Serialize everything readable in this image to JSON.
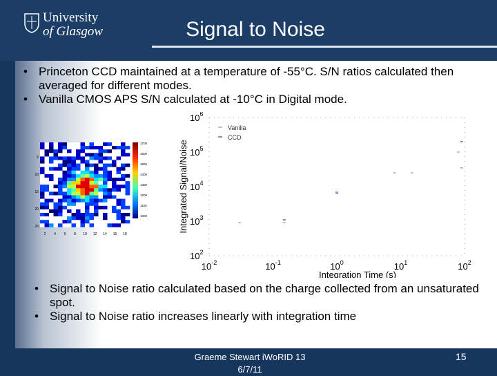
{
  "header": {
    "university_line1": "University",
    "university_line2": "of Glasgow",
    "title": "Signal to Noise"
  },
  "bullets_top": [
    "Princeton CCD maintained at a temperature of -55°C.  S/N ratios calculated then averaged for different modes.",
    "Vanilla CMOS APS S/N calculated at -10°C in Digital mode."
  ],
  "bullets_bottom": [
    "Signal to Noise ratio calculated based on the charge collected from an unsaturated spot.",
    "Signal to Noise ratio increases linearly with integration time"
  ],
  "bullet_symbol": "•",
  "heatmap": {
    "x_ticks": [
      "2",
      "4",
      "6",
      "8",
      "10",
      "12",
      "14",
      "16",
      "18"
    ],
    "y_ticks": [
      "5",
      "10",
      "15",
      "20",
      "25"
    ],
    "colorbar_ticks": [
      "1700",
      "1600",
      "1500",
      "1400",
      "1300",
      "1200",
      "1100",
      "1000"
    ]
  },
  "chart_data": {
    "type": "scatter",
    "title": "",
    "xlabel": "Integration Time (s)",
    "ylabel": "Integrated Signal/Noise",
    "xscale": "log",
    "yscale": "log",
    "xlim": [
      0.01,
      100
    ],
    "ylim": [
      100,
      1000000
    ],
    "x_tick_labels": [
      {
        "base": "10",
        "exp": "-2",
        "value": 0.01
      },
      {
        "base": "10",
        "exp": "-1",
        "value": 0.1
      },
      {
        "base": "10",
        "exp": "0",
        "value": 1
      },
      {
        "base": "10",
        "exp": "1",
        "value": 10
      },
      {
        "base": "10",
        "exp": "2",
        "value": 100
      }
    ],
    "y_tick_labels": [
      {
        "base": "10",
        "exp": "2",
        "value": 100
      },
      {
        "base": "10",
        "exp": "3",
        "value": 1000
      },
      {
        "base": "10",
        "exp": "4",
        "value": 10000
      },
      {
        "base": "10",
        "exp": "5",
        "value": 100000
      },
      {
        "base": "10",
        "exp": "6",
        "value": 1000000
      }
    ],
    "legend_position": "top-left",
    "series": [
      {
        "name": "Vanilla",
        "color": "#999999",
        "points": [
          [
            0.03,
            900
          ],
          [
            0.15,
            900
          ],
          [
            1,
            7000
          ],
          [
            8,
            25000
          ],
          [
            15,
            25000
          ],
          [
            80,
            100000
          ],
          [
            90,
            35000
          ]
        ]
      },
      {
        "name": "CCD",
        "color": "#2244aa",
        "points": [
          [
            0.15,
            1100
          ],
          [
            1,
            6500
          ],
          [
            90,
            200000
          ]
        ]
      }
    ]
  },
  "footer": {
    "text_line1": "Graeme Stewart iWoRID 13",
    "text_line2": "6/7/11",
    "page_number": "15"
  },
  "colors": {
    "background": "#17365d",
    "header": "#1c3e66",
    "accent_rule": "#dfe7ef"
  }
}
